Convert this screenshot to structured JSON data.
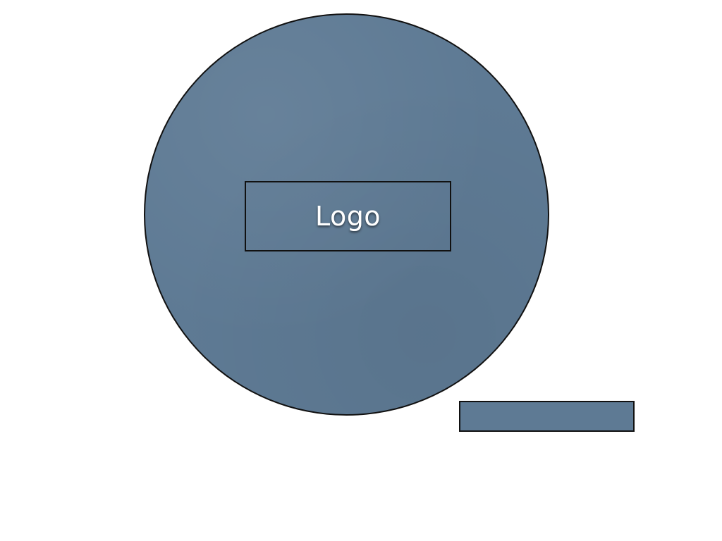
{
  "slide": {
    "logo_label": "Logo"
  },
  "colors": {
    "shape_fill": "#5e7a94",
    "outline": "#111111",
    "background": "#ffffff",
    "logo_text": "#ffffff"
  }
}
